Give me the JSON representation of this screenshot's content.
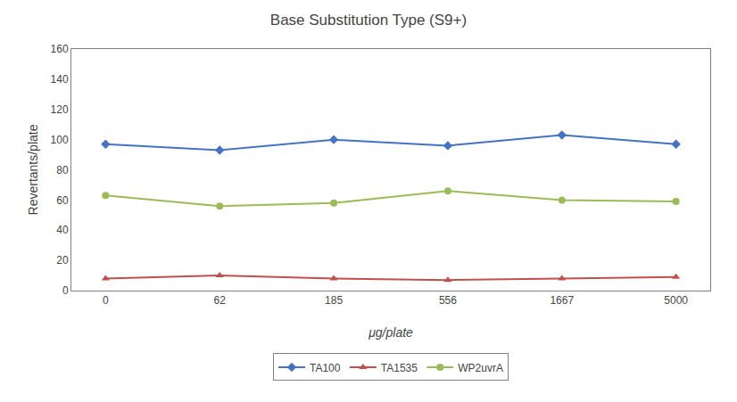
{
  "chart_data": {
    "type": "line",
    "title": "Base Substitution Type (S9+)",
    "xlabel": "μg/plate",
    "ylabel": "Revertants/plate",
    "categories": [
      "0",
      "62",
      "185",
      "556",
      "1667",
      "5000"
    ],
    "series": [
      {
        "name": "TA100",
        "color": "#4472C4",
        "marker": "diamond",
        "values": [
          97,
          93,
          100,
          96,
          103,
          97
        ]
      },
      {
        "name": "TA1535",
        "color": "#C0504D",
        "marker": "triangle-up",
        "values": [
          8,
          10,
          8,
          7,
          8,
          9
        ]
      },
      {
        "name": "WP2uvrA",
        "color": "#9BBB59",
        "marker": "circle",
        "values": [
          63,
          56,
          58,
          66,
          60,
          59
        ]
      }
    ],
    "ylim": [
      0,
      160
    ],
    "yticks": [
      0,
      20,
      40,
      60,
      80,
      100,
      120,
      140,
      160
    ],
    "grid": false,
    "legend": "bottom"
  }
}
